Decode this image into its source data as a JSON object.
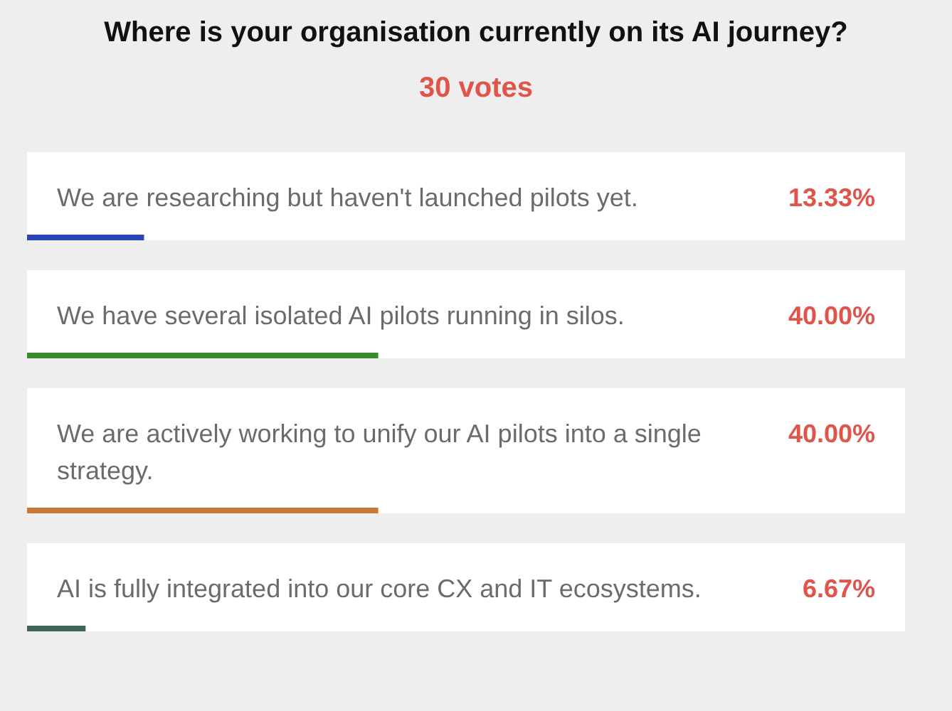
{
  "chart_data": {
    "type": "bar",
    "orientation": "horizontal",
    "title": "Where is your organisation currently on its AI journey?",
    "subtitle": "30 votes",
    "categories": [
      "We are researching but haven't launched pilots yet.",
      "We have several isolated AI pilots running in silos.",
      "We are actively working to unify our AI pilots into a single strategy.",
      "AI is fully integrated into our core CX and IT ecosystems."
    ],
    "values": [
      13.33,
      40.0,
      40.0,
      6.67
    ],
    "colors": [
      "#2a45b8",
      "#3a8a2e",
      "#c87834",
      "#3e6458"
    ],
    "value_labels": [
      "13.33%",
      "40.00%",
      "40.00%",
      "6.67%"
    ],
    "xlim": [
      0,
      100
    ]
  }
}
